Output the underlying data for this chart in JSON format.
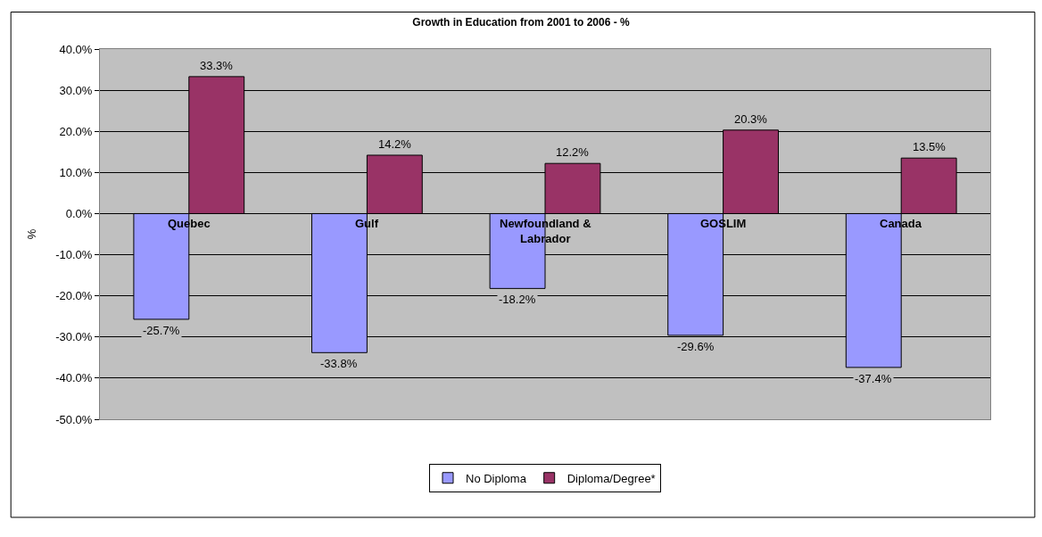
{
  "chart_data": {
    "type": "bar",
    "title": "Growth in Education from 2001 to 2006 - %",
    "ylabel": "%",
    "categories": [
      "Quebec",
      "Gulf",
      "Newfoundland &\nLabrador",
      "GOSLIM",
      "Canada"
    ],
    "series": [
      {
        "name": "No Diploma",
        "color": "#9999ff",
        "values": [
          -25.7,
          -33.8,
          -18.2,
          -29.6,
          -37.4
        ],
        "value_labels": [
          "-25.7%",
          "-33.8%",
          "-18.2%",
          "-29.6%",
          "-37.4%"
        ]
      },
      {
        "name": "Diploma/Degree*",
        "color": "#993366",
        "values": [
          33.3,
          14.2,
          12.2,
          20.3,
          13.5
        ],
        "value_labels": [
          "33.3%",
          "14.2%",
          "12.2%",
          "20.3%",
          "13.5%"
        ]
      }
    ],
    "ylim": [
      -50,
      40
    ],
    "yticks": [
      {
        "value": -50,
        "label": "-50.0%"
      },
      {
        "value": -40,
        "label": "-40.0%"
      },
      {
        "value": -30,
        "label": "-30.0%"
      },
      {
        "value": -20,
        "label": "-20.0%"
      },
      {
        "value": -10,
        "label": "-10.0%"
      },
      {
        "value": 0,
        "label": "0.0%"
      },
      {
        "value": 10,
        "label": "10.0%"
      },
      {
        "value": 20,
        "label": "20.0%"
      },
      {
        "value": 30,
        "label": "30.0%"
      },
      {
        "value": 40,
        "label": "40.0%"
      }
    ],
    "grid": "y",
    "legend": "bottom"
  }
}
